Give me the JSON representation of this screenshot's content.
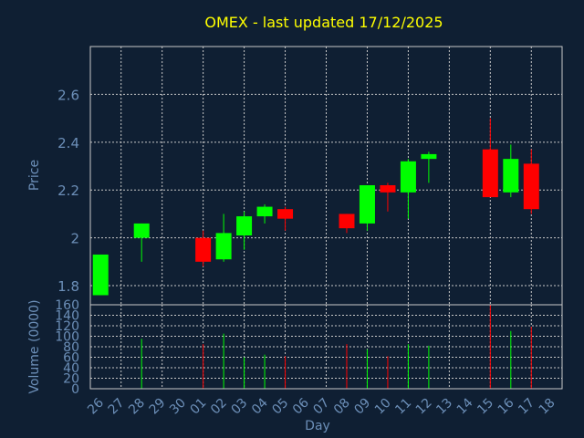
{
  "chart_data": {
    "type": "candlestick",
    "title": "OMEX - last updated 17/12/2025",
    "xlabel": "Day",
    "price_panel": {
      "ylabel": "Price",
      "ylim": [
        1.72,
        2.8
      ],
      "yticks": [
        "1.8",
        "2",
        "2.2",
        "2.4",
        "2.6"
      ],
      "grid": true
    },
    "volume_panel": {
      "ylabel": "Volume (0000)",
      "ylim": [
        0,
        160
      ],
      "yticks": [
        "0",
        "20",
        "40",
        "60",
        "80",
        "100",
        "120",
        "140",
        "160"
      ],
      "grid": true
    },
    "x_ticks": [
      "26",
      "27",
      "28",
      "29",
      "30",
      "01",
      "02",
      "03",
      "04",
      "05",
      "06",
      "07",
      "08",
      "09",
      "10",
      "11",
      "12",
      "13",
      "14",
      "15",
      "16",
      "17",
      "18"
    ],
    "candles": [
      {
        "day": "26",
        "open": 1.76,
        "high": 1.93,
        "low": 1.76,
        "close": 1.93,
        "volume": 0
      },
      {
        "day": "28",
        "open": 2.0,
        "high": 2.06,
        "low": 1.9,
        "close": 2.06,
        "volume": 95
      },
      {
        "day": "01",
        "open": 2.0,
        "high": 2.03,
        "low": 1.88,
        "close": 1.9,
        "volume": 85
      },
      {
        "day": "02",
        "open": 1.91,
        "high": 2.1,
        "low": 1.9,
        "close": 2.02,
        "volume": 105
      },
      {
        "day": "03",
        "open": 2.01,
        "high": 2.11,
        "low": 1.95,
        "close": 2.09,
        "volume": 60
      },
      {
        "day": "04",
        "open": 2.09,
        "high": 2.14,
        "low": 2.06,
        "close": 2.13,
        "volume": 65
      },
      {
        "day": "05",
        "open": 2.12,
        "high": 2.13,
        "low": 2.03,
        "close": 2.08,
        "volume": 62
      },
      {
        "day": "08",
        "open": 2.1,
        "high": 2.1,
        "low": 2.02,
        "close": 2.04,
        "volume": 85
      },
      {
        "day": "09",
        "open": 2.06,
        "high": 2.22,
        "low": 2.03,
        "close": 2.22,
        "volume": 75
      },
      {
        "day": "10",
        "open": 2.22,
        "high": 2.23,
        "low": 2.11,
        "close": 2.19,
        "volume": 62
      },
      {
        "day": "11",
        "open": 2.19,
        "high": 2.33,
        "low": 2.08,
        "close": 2.32,
        "volume": 85
      },
      {
        "day": "12",
        "open": 2.33,
        "high": 2.36,
        "low": 2.23,
        "close": 2.35,
        "volume": 82
      },
      {
        "day": "15",
        "open": 2.37,
        "high": 2.5,
        "low": 2.17,
        "close": 2.17,
        "volume": 160
      },
      {
        "day": "16",
        "open": 2.19,
        "high": 2.39,
        "low": 2.17,
        "close": 2.33,
        "volume": 110
      },
      {
        "day": "17",
        "open": 2.31,
        "high": 2.37,
        "low": 2.1,
        "close": 2.12,
        "volume": 118
      }
    ],
    "colors": {
      "background": "#0f1f33",
      "plot_border": "#c8c8c8",
      "grid": "#c8c8c8",
      "up": "#00ff00",
      "down": "#ff0000",
      "title": "#ffff00",
      "axis_text": "#6c8fb8"
    }
  }
}
